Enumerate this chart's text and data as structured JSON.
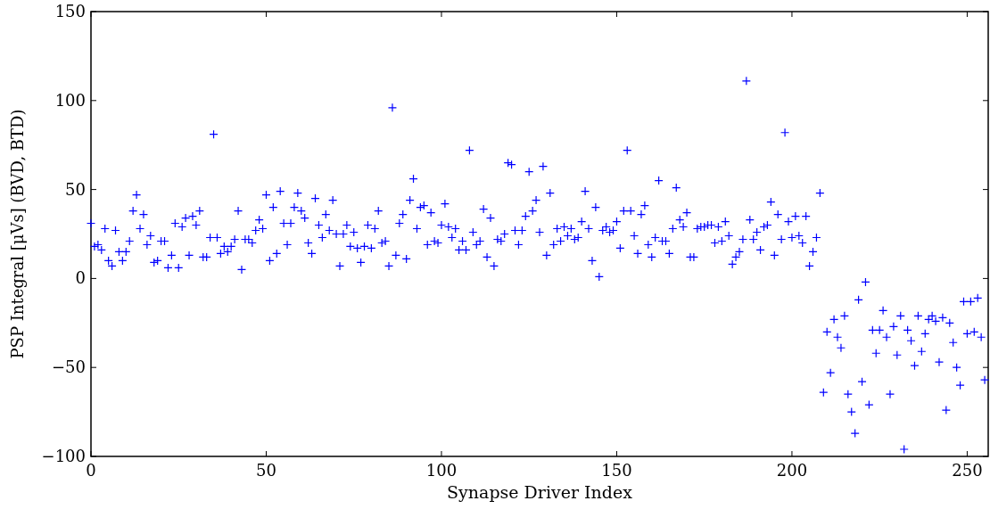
{
  "chart_data": {
    "type": "scatter",
    "xlabel": "Synapse Driver Index",
    "ylabel": "PSP Integral [μVs] (BVD, BTD)",
    "xlim": [
      0,
      256
    ],
    "xticks": [
      0,
      50,
      100,
      150,
      200,
      250
    ],
    "ylim": [
      -100,
      150
    ],
    "yticks": [
      {
        "value": -100,
        "label": "−100"
      },
      {
        "value": -50,
        "label": "−50"
      },
      0,
      50,
      100,
      150
    ],
    "marker": "cross",
    "series": [
      {
        "color": "#0000ff",
        "x": [
          0,
          1,
          2,
          3,
          4,
          5,
          6,
          7,
          8,
          9,
          10,
          11,
          12,
          13,
          14,
          15,
          16,
          17,
          18,
          19,
          20,
          21,
          22,
          23,
          24,
          25,
          26,
          27,
          28,
          29,
          30,
          31,
          32,
          33,
          34,
          35,
          36,
          37,
          38,
          39,
          40,
          41,
          42,
          43,
          44,
          45,
          46,
          47,
          48,
          49,
          50,
          51,
          52,
          53,
          54,
          55,
          56,
          57,
          58,
          59,
          60,
          61,
          62,
          63,
          64,
          65,
          66,
          67,
          68,
          69,
          70,
          71,
          72,
          73,
          74,
          75,
          76,
          77,
          78,
          79,
          80,
          81,
          82,
          83,
          84,
          85,
          86,
          87,
          88,
          89,
          90,
          91,
          92,
          93,
          94,
          95,
          96,
          97,
          98,
          99,
          100,
          101,
          102,
          103,
          104,
          105,
          106,
          107,
          108,
          109,
          110,
          111,
          112,
          113,
          114,
          115,
          116,
          117,
          118,
          119,
          120,
          121,
          122,
          123,
          124,
          125,
          126,
          127,
          128,
          129,
          130,
          131,
          132,
          133,
          134,
          135,
          136,
          137,
          138,
          139,
          140,
          141,
          142,
          143,
          144,
          145,
          146,
          147,
          148,
          149,
          150,
          151,
          152,
          153,
          154,
          155,
          156,
          157,
          158,
          159,
          160,
          161,
          162,
          163,
          164,
          165,
          166,
          167,
          168,
          169,
          170,
          171,
          172,
          173,
          174,
          175,
          176,
          177,
          178,
          179,
          180,
          181,
          182,
          183,
          184,
          185,
          186,
          187,
          188,
          189,
          190,
          191,
          192,
          193,
          194,
          195,
          196,
          197,
          198,
          199,
          200,
          201,
          202,
          203,
          204,
          205,
          206,
          207,
          208,
          209,
          210,
          211,
          212,
          213,
          214,
          215,
          216,
          217,
          218,
          219,
          220,
          221,
          222,
          223,
          224,
          225,
          226,
          227,
          228,
          229,
          230,
          231,
          232,
          233,
          234,
          235,
          236,
          237,
          238,
          239,
          240,
          241,
          242,
          243,
          244,
          245,
          246,
          247,
          248,
          249,
          250,
          251,
          252,
          253,
          254,
          255
        ],
        "values": [
          31,
          18,
          19,
          16,
          28,
          10,
          7,
          27,
          15,
          10,
          15,
          21,
          38,
          47,
          28,
          36,
          19,
          24,
          9,
          10,
          21,
          21,
          6,
          13,
          31,
          6,
          29,
          34,
          13,
          35,
          30,
          38,
          12,
          12,
          23,
          81,
          23,
          14,
          18,
          15,
          18,
          22,
          38,
          5,
          22,
          22,
          20,
          27,
          33,
          28,
          47,
          10,
          40,
          14,
          49,
          31,
          19,
          31,
          40,
          48,
          38,
          34,
          20,
          14,
          45,
          30,
          23,
          36,
          27,
          44,
          25,
          7,
          25,
          30,
          18,
          26,
          17,
          9,
          18,
          30,
          17,
          28,
          38,
          20,
          21,
          7,
          96,
          13,
          31,
          36,
          11,
          44,
          56,
          28,
          40,
          41,
          19,
          37,
          21,
          20,
          30,
          42,
          29,
          23,
          28,
          16,
          21,
          16,
          72,
          26,
          19,
          21,
          39,
          12,
          34,
          7,
          22,
          21,
          25,
          65,
          64,
          27,
          19,
          27,
          35,
          60,
          38,
          44,
          26,
          63,
          13,
          48,
          19,
          28,
          21,
          29,
          24,
          28,
          22,
          23,
          32,
          49,
          28,
          10,
          40,
          1,
          27,
          29,
          26,
          27,
          32,
          17,
          38,
          72,
          38,
          24,
          14,
          36,
          41,
          19,
          12,
          23,
          55,
          21,
          21,
          14,
          28,
          51,
          33,
          29,
          37,
          12,
          12,
          28,
          29,
          29,
          30,
          30,
          20,
          29,
          21,
          32,
          24,
          8,
          12,
          15,
          22,
          111,
          33,
          22,
          26,
          16,
          29,
          30,
          43,
          13,
          36,
          22,
          82,
          32,
          23,
          35,
          24,
          20,
          35,
          7,
          15,
          23,
          48,
          -64,
          -30,
          -53,
          -23,
          -33,
          -39,
          -21,
          -65,
          -75,
          -87,
          -12,
          -58,
          -2,
          -71,
          -29,
          -42,
          -29,
          -18,
          -33,
          -65,
          -27,
          -43,
          -21,
          -96,
          -29,
          -35,
          -49,
          -21,
          -41,
          -31,
          -23,
          -21,
          -24,
          -47,
          -22,
          -74,
          -25,
          -36,
          -50,
          -60,
          -13,
          -31,
          -13,
          -30,
          -11,
          -33,
          -57
        ]
      }
    ]
  }
}
